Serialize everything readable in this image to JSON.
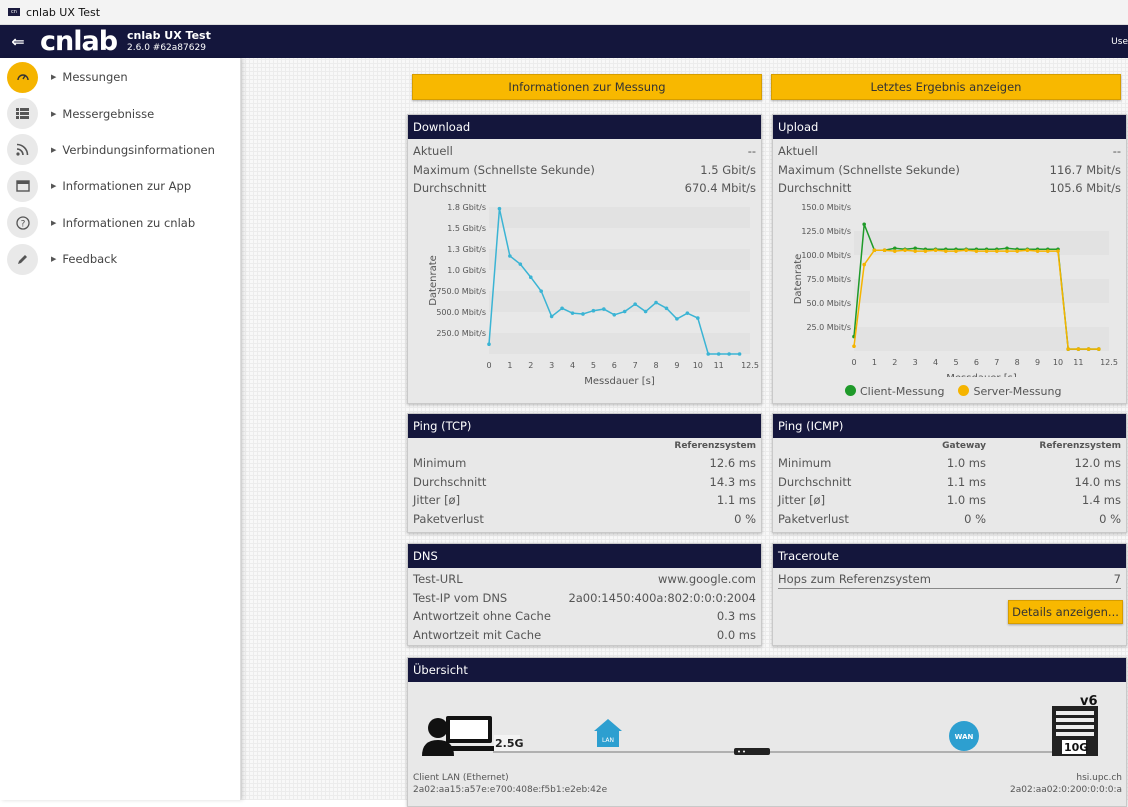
{
  "window": {
    "title": "cnlab UX Test"
  },
  "app": {
    "logo": "cnlab",
    "name": "cnlab UX Test",
    "version": "2.6.0 #62a87629",
    "user": "Use"
  },
  "sidebar": {
    "items": [
      {
        "label": "Messungen",
        "icon": "speedometer-icon",
        "active": true
      },
      {
        "label": "Messergebnisse",
        "icon": "list-icon",
        "active": false
      },
      {
        "label": "Verbindungsinformationen",
        "icon": "rss-icon",
        "active": false
      },
      {
        "label": "Informationen zur App",
        "icon": "window-icon",
        "active": false
      },
      {
        "label": "Informationen zu cnlab",
        "icon": "help-icon",
        "active": false
      },
      {
        "label": "Feedback",
        "icon": "pen-icon",
        "active": false
      }
    ]
  },
  "actions": {
    "info_label": "Informationen zur Messung",
    "last_result_label": "Letztes Ergebnis anzeigen"
  },
  "download": {
    "title": "Download",
    "rows": [
      {
        "label": "Aktuell",
        "value": "--"
      },
      {
        "label": "Maximum (Schnellste Sekunde)",
        "value": "1.5 Gbit/s"
      },
      {
        "label": "Durchschnitt",
        "value": "670.4 Mbit/s"
      }
    ]
  },
  "upload": {
    "title": "Upload",
    "rows": [
      {
        "label": "Aktuell",
        "value": "--"
      },
      {
        "label": "Maximum (Schnellste Sekunde)",
        "value": "116.7 Mbit/s"
      },
      {
        "label": "Durchschnitt",
        "value": "105.6 Mbit/s"
      }
    ]
  },
  "chart_data": [
    {
      "type": "line",
      "ylabel": "Datenrate",
      "xlabel": "Messdauer [s]",
      "y_ticks": [
        "250.0 Mbit/s",
        "500.0 Mbit/s",
        "750.0 Mbit/s",
        "1.0 Gbit/s",
        "1.3 Gbit/s",
        "1.5 Gbit/s",
        "1.8 Gbit/s"
      ],
      "x_ticks": [
        "0",
        "1",
        "2",
        "3",
        "4",
        "5",
        "6",
        "7",
        "8",
        "9",
        "10",
        "11",
        "12.5"
      ],
      "ylim": [
        0,
        1800
      ],
      "xlim": [
        0,
        12.5
      ],
      "series": [
        {
          "color": "#3bb4d4",
          "x": [
            0,
            0.5,
            1,
            1.5,
            2,
            2.5,
            3,
            3.5,
            4,
            4.5,
            5,
            5.5,
            6,
            6.5,
            7,
            7.5,
            8,
            8.5,
            9,
            9.5,
            10,
            10.5,
            11,
            11.5,
            12
          ],
          "values": [
            120,
            1780,
            1200,
            1100,
            940,
            770,
            460,
            560,
            500,
            490,
            530,
            550,
            480,
            520,
            610,
            520,
            630,
            560,
            430,
            500,
            440,
            0,
            0,
            0,
            0
          ]
        }
      ]
    },
    {
      "type": "line",
      "ylabel": "Datenrate",
      "xlabel": "Messdauer [s]",
      "y_ticks": [
        "25.0 Mbit/s",
        "50.0 Mbit/s",
        "75.0 Mbit/s",
        "100.0 Mbit/s",
        "125.0 Mbit/s",
        "150.0 Mbit/s"
      ],
      "x_ticks": [
        "0",
        "1",
        "2",
        "3",
        "4",
        "5",
        "6",
        "7",
        "8",
        "9",
        "10",
        "11",
        "12.5"
      ],
      "ylim": [
        0,
        150
      ],
      "xlim": [
        0,
        12.5
      ],
      "legend": "bottom",
      "series": [
        {
          "name": "Client-Messung",
          "color": "#1f9a2a",
          "x": [
            0,
            0.5,
            1,
            1.5,
            2,
            2.5,
            3,
            3.5,
            4,
            4.5,
            5,
            5.5,
            6,
            6.5,
            7,
            7.5,
            8,
            8.5,
            9,
            9.5,
            10,
            10.5,
            11,
            11.5,
            12
          ],
          "values": [
            15,
            132,
            105,
            105,
            107,
            106,
            107,
            106,
            106,
            106,
            106,
            106,
            106,
            106,
            106,
            107,
            106,
            106,
            106,
            106,
            106,
            2,
            2,
            2,
            2
          ]
        },
        {
          "name": "Server-Messung",
          "color": "#f5b400",
          "x": [
            0,
            0.5,
            1,
            1.5,
            2,
            2.5,
            3,
            3.5,
            4,
            4.5,
            5,
            5.5,
            6,
            6.5,
            7,
            7.5,
            8,
            8.5,
            9,
            9.5,
            10,
            10.5,
            11,
            11.5,
            12
          ],
          "values": [
            5,
            90,
            105,
            105,
            104,
            105,
            104,
            104,
            105,
            104,
            104,
            105,
            104,
            104,
            104,
            104,
            104,
            105,
            104,
            104,
            104,
            2,
            2,
            2,
            2
          ]
        }
      ]
    }
  ],
  "ping_tcp": {
    "title": "Ping (TCP)",
    "col": "Referenzsystem",
    "rows": [
      {
        "label": "Minimum",
        "value": "12.6 ms"
      },
      {
        "label": "Durchschnitt",
        "value": "14.3 ms"
      },
      {
        "label": "Jitter [ø]",
        "value": "1.1 ms"
      },
      {
        "label": "Paketverlust",
        "value": "0 %"
      }
    ]
  },
  "ping_icmp": {
    "title": "Ping (ICMP)",
    "col1": "Gateway",
    "col2": "Referenzsystem",
    "rows": [
      {
        "label": "Minimum",
        "g": "1.0 ms",
        "r": "12.0 ms"
      },
      {
        "label": "Durchschnitt",
        "g": "1.1 ms",
        "r": "14.0 ms"
      },
      {
        "label": "Jitter [ø]",
        "g": "1.0 ms",
        "r": "1.4 ms"
      },
      {
        "label": "Paketverlust",
        "g": "0 %",
        "r": "0 %"
      }
    ]
  },
  "dns": {
    "title": "DNS",
    "rows": [
      {
        "label": "Test-URL",
        "value": "www.google.com"
      },
      {
        "label": "Test-IP vom DNS",
        "value": "2a00:1450:400a:802:0:0:0:2004"
      },
      {
        "label": "Antwortzeit ohne Cache",
        "value": "0.3 ms"
      },
      {
        "label": "Antwortzeit mit Cache",
        "value": "0.0 ms"
      }
    ]
  },
  "traceroute": {
    "title": "Traceroute",
    "label": "Hops zum Referenzsystem",
    "value": "7",
    "button": "Details anzeigen..."
  },
  "overview": {
    "title": "Übersicht",
    "client_speed": "2.5G",
    "lan": "LAN",
    "wan": "WAN",
    "server_speed": "10G",
    "v6": "v6",
    "client_label": "Client LAN (Ethernet)",
    "client_ip": "2a02:aa15:a57e:e700:408e:f5b1:e2eb:42e",
    "server_label": "hsi.upc.ch",
    "server_ip": "2a02:aa02:0:200:0:0:0:a"
  }
}
